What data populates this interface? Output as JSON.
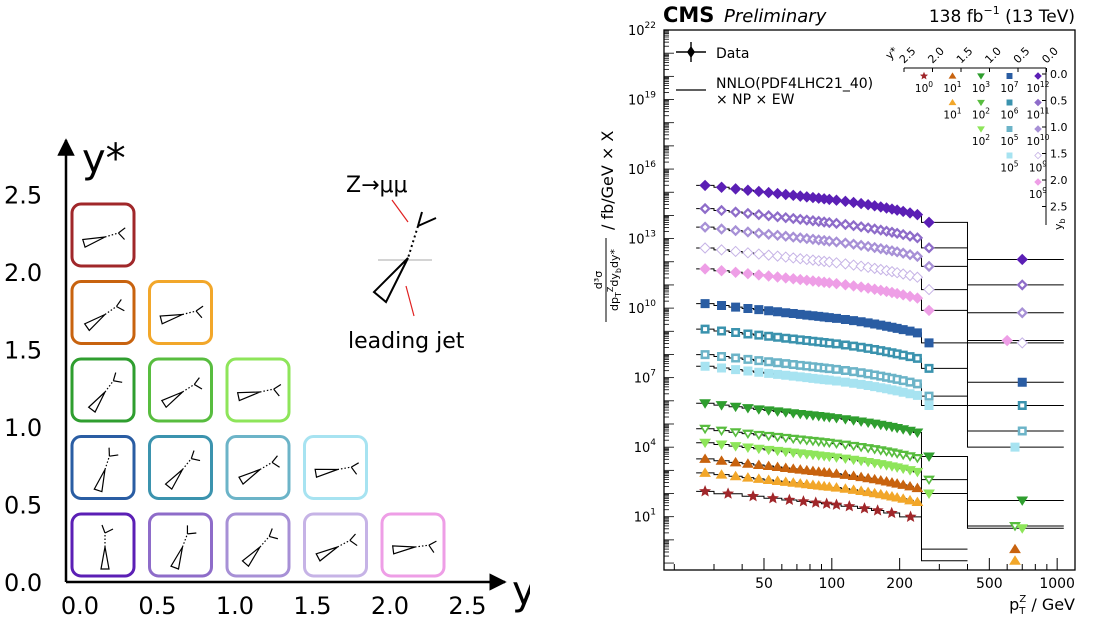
{
  "colors": {
    "purple_dark": "#5b1fb5",
    "purple_mid": "#8e6cc9",
    "lavender": "#a790d6",
    "lavender_light": "#c6b3e6",
    "pink": "#ee9ee6",
    "blue_dark": "#2a5da3",
    "teal": "#3b93ae",
    "teal_light": "#6cb4c8",
    "cyan_light": "#a7e3f1",
    "green_dark": "#2f9e2f",
    "green_mid": "#58bd3f",
    "green_light": "#8ee55a",
    "orange_dark": "#c8630f",
    "orange": "#f2a72a",
    "red_dark": "#a0272a"
  },
  "left_panel": {
    "y_title": "y*",
    "x_title_main": "y",
    "x_title_sub": "b",
    "y_ticks": [
      "0.0",
      "0.5",
      "1.0",
      "1.5",
      "2.0",
      "2.5"
    ],
    "x_ticks": [
      "0.0",
      "0.5",
      "1.0",
      "1.5",
      "2.0",
      "2.5"
    ],
    "legend_process": "Z→μμ",
    "legend_jet": "leading jet",
    "bins": [
      {
        "row": 0,
        "col": 0,
        "color": "purple_dark"
      },
      {
        "row": 0,
        "col": 1,
        "color": "purple_mid"
      },
      {
        "row": 0,
        "col": 2,
        "color": "lavender"
      },
      {
        "row": 0,
        "col": 3,
        "color": "lavender_light"
      },
      {
        "row": 0,
        "col": 4,
        "color": "pink"
      },
      {
        "row": 1,
        "col": 0,
        "color": "blue_dark"
      },
      {
        "row": 1,
        "col": 1,
        "color": "teal"
      },
      {
        "row": 1,
        "col": 2,
        "color": "teal_light"
      },
      {
        "row": 1,
        "col": 3,
        "color": "cyan_light"
      },
      {
        "row": 2,
        "col": 0,
        "color": "green_dark"
      },
      {
        "row": 2,
        "col": 1,
        "color": "green_mid"
      },
      {
        "row": 2,
        "col": 2,
        "color": "green_light"
      },
      {
        "row": 3,
        "col": 0,
        "color": "orange_dark"
      },
      {
        "row": 3,
        "col": 1,
        "color": "orange"
      },
      {
        "row": 4,
        "col": 0,
        "color": "red_dark"
      }
    ]
  },
  "chart_data": {
    "type": "scatter",
    "title_bold": "CMS",
    "title_italic": "Preliminary",
    "lumi": "138 fb",
    "lumi_exp": "−1",
    "lumi_energy": " (13 TeV)",
    "xlabel": "p",
    "xlabel_sup": "Z",
    "xlabel_sub": "T",
    "xlabel_unit": " / GeV",
    "ylabel": "d³σ / dpᵀᴢdyᵇdy* / fb/GeV × X",
    "ylabel_frac_num": "d³σ",
    "ylabel_frac_den": "dp",
    "ylabel_frac_den_sup": "Z",
    "ylabel_frac_den_sub": "T",
    "ylabel_frac_den_rest": "dy",
    "ylabel_frac_den_rest_sub": "b",
    "ylabel_frac_den_rest2": "dy*",
    "ylabel_rest": "/ fb/GeV × X",
    "xscale": "log",
    "yscale": "log",
    "xlim": [
      18,
      1200
    ],
    "ylim_exp": [
      -1.3,
      22
    ],
    "x_ticks": [
      50,
      100,
      200,
      500,
      1000
    ],
    "x_tick_labels": [
      "50",
      "100",
      "200",
      "500",
      "1000"
    ],
    "y_tick_exps": [
      1,
      4,
      7,
      10,
      13,
      16,
      19,
      22
    ],
    "legend_data": "Data",
    "legend_theory_1": "NNLO(PDF4LHC21_40)",
    "legend_theory_2": "× NP × EW",
    "inset": {
      "ystar_label": "y*",
      "yb_label": "y",
      "yb_sub": "b",
      "top_ticks": [
        "2.5",
        "2.0",
        "1.5",
        "1.0",
        "0.5",
        "0.0"
      ],
      "right_ticks": [
        "0.0",
        "0.5",
        "1.0",
        "1.5",
        "2.0",
        "2.5"
      ],
      "scale_labels": [
        {
          "row": 0,
          "col": 0,
          "base": "10",
          "exp": "0"
        },
        {
          "row": 0,
          "col": 1,
          "base": "10",
          "exp": "1"
        },
        {
          "row": 0,
          "col": 2,
          "base": "10",
          "exp": "3"
        },
        {
          "row": 0,
          "col": 3,
          "base": "10",
          "exp": "7"
        },
        {
          "row": 0,
          "col": 4,
          "base": "10",
          "exp": "12"
        },
        {
          "row": 1,
          "col": 1,
          "base": "10",
          "exp": "1"
        },
        {
          "row": 1,
          "col": 2,
          "base": "10",
          "exp": "2"
        },
        {
          "row": 1,
          "col": 3,
          "base": "10",
          "exp": "6"
        },
        {
          "row": 1,
          "col": 4,
          "base": "10",
          "exp": "11"
        },
        {
          "row": 2,
          "col": 2,
          "base": "10",
          "exp": "2"
        },
        {
          "row": 2,
          "col": 3,
          "base": "10",
          "exp": "5"
        },
        {
          "row": 2,
          "col": 4,
          "base": "10",
          "exp": "10"
        },
        {
          "row": 3,
          "col": 3,
          "base": "10",
          "exp": "5"
        },
        {
          "row": 3,
          "col": 4,
          "base": "10",
          "exp": "9"
        },
        {
          "row": 4,
          "col": 4,
          "base": "10",
          "exp": "9"
        }
      ]
    },
    "series": [
      {
        "color": "purple_dark",
        "marker": "diamond",
        "fill": "solid",
        "start": 15.3,
        "slope": 0.33,
        "extra": [
          [
            270,
            13.7
          ],
          [
            700,
            12.1
          ]
        ]
      },
      {
        "color": "purple_mid",
        "marker": "diamond",
        "fill": "half",
        "start": 14.3,
        "slope": 0.33,
        "extra": [
          [
            270,
            12.6
          ],
          [
            700,
            11.0
          ]
        ]
      },
      {
        "color": "lavender",
        "marker": "diamond",
        "fill": "half",
        "start": 13.5,
        "slope": 0.33,
        "extra": [
          [
            270,
            11.8
          ],
          [
            700,
            9.8
          ]
        ]
      },
      {
        "color": "lavender_light",
        "marker": "diamond",
        "fill": "open",
        "start": 12.6,
        "slope": 0.33,
        "extra": [
          [
            270,
            10.8
          ],
          [
            700,
            8.5
          ]
        ]
      },
      {
        "color": "pink",
        "marker": "diamond",
        "fill": "solid",
        "start": 11.7,
        "slope": 0.33,
        "extra": [
          [
            270,
            9.9
          ],
          [
            600,
            8.6
          ]
        ]
      },
      {
        "color": "blue_dark",
        "marker": "square",
        "fill": "solid",
        "start": 10.2,
        "slope": 0.33,
        "extra": [
          [
            270,
            8.5
          ],
          [
            700,
            6.8
          ]
        ]
      },
      {
        "color": "teal",
        "marker": "square",
        "fill": "half",
        "start": 9.1,
        "slope": 0.33,
        "extra": [
          [
            270,
            7.4
          ],
          [
            700,
            5.8
          ]
        ]
      },
      {
        "color": "teal_light",
        "marker": "square",
        "fill": "half",
        "start": 8.0,
        "slope": 0.33,
        "extra": [
          [
            270,
            6.2
          ],
          [
            700,
            4.7
          ]
        ]
      },
      {
        "color": "cyan_light",
        "marker": "square",
        "fill": "solid",
        "start": 7.5,
        "slope": 0.33,
        "extra": [
          [
            270,
            5.8
          ],
          [
            650,
            4.0
          ]
        ]
      },
      {
        "color": "green_dark",
        "marker": "tri_down",
        "fill": "solid",
        "start": 5.9,
        "slope": 0.33,
        "extra": [
          [
            270,
            3.6
          ],
          [
            700,
            1.7
          ]
        ]
      },
      {
        "color": "green_mid",
        "marker": "tri_down",
        "fill": "half",
        "start": 4.8,
        "slope": 0.33,
        "extra": [
          [
            270,
            2.6
          ],
          [
            650,
            0.6
          ]
        ]
      },
      {
        "color": "green_light",
        "marker": "tri_down",
        "fill": "solid",
        "start": 4.2,
        "slope": 0.33,
        "extra": [
          [
            270,
            2.0
          ],
          [
            700,
            0.5
          ]
        ]
      },
      {
        "color": "orange_dark",
        "marker": "tri_up",
        "fill": "solid",
        "start": 3.5,
        "slope": 0.33,
        "extra": [
          [
            650,
            -0.4
          ]
        ]
      },
      {
        "color": "orange",
        "marker": "tri_up",
        "fill": "solid",
        "start": 2.9,
        "slope": 0.33,
        "extra": [
          [
            650,
            -0.9
          ]
        ]
      },
      {
        "color": "red_dark",
        "marker": "star",
        "fill": "solid",
        "start": 2.1,
        "slope": 0.3,
        "extra": []
      }
    ]
  }
}
